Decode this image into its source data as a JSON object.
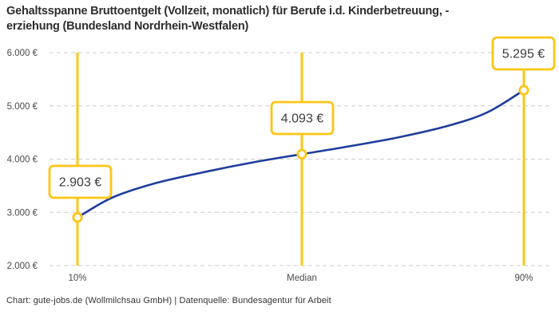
{
  "title": {
    "line1": "Gehaltsspanne Bruttoentgelt (Vollzeit, monatlich) für Berufe i.d. Kinderbetreuung, -",
    "line2": "erziehung (Bundesland Nordrhein-Westfalen)"
  },
  "footer": {
    "attribution": "Chart: gute-jobs.de (Wollmilchsau GmbH) | Datenquelle: Bundesagentur für Arbeit"
  },
  "chart_data": {
    "type": "line",
    "title": "Gehaltsspanne Bruttoentgelt (Vollzeit, monatlich) für Berufe i.d. Kinderbetreuung, -erziehung (Bundesland Nordrhein-Westfalen)",
    "categories": [
      "10%",
      "Median",
      "90%"
    ],
    "values": [
      2903,
      4093,
      5295
    ],
    "value_labels": [
      "2.903 €",
      "4.093 €",
      "5.295 €"
    ],
    "series_name": "Bruttoentgelt",
    "y_ticks": [
      2000,
      3000,
      4000,
      5000,
      6000
    ],
    "y_tick_labels": [
      "2.000 €",
      "3.000 €",
      "4.000 €",
      "5.000 €",
      "6.000 €"
    ],
    "ylim": [
      2000,
      6000
    ],
    "xlabel": "",
    "ylabel": "",
    "grid": "horizontal-dashed",
    "legend": "none",
    "colors": {
      "curve": "#1e3d9b",
      "accent": "#fdc516",
      "gridline": "#cccccc",
      "label_text": "#3c3c3c",
      "axis_text": "#4a4a4a"
    }
  }
}
